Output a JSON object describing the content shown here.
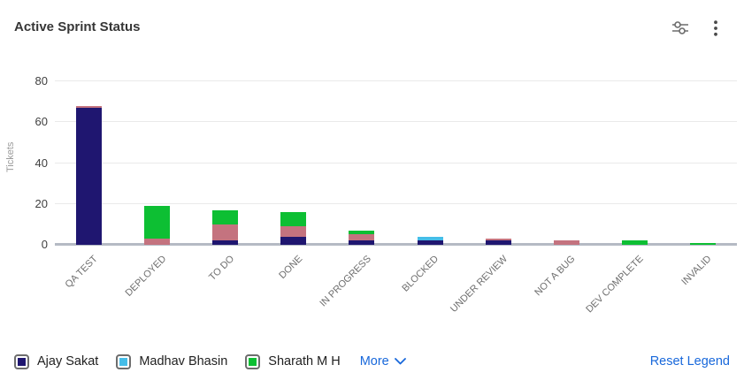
{
  "header": {
    "title": "Active Sprint Status"
  },
  "chart_data": {
    "type": "bar",
    "stacked": true,
    "title": "Active Sprint Status",
    "xlabel": "",
    "ylabel": "Tickets",
    "ylim": [
      0,
      80
    ],
    "yticks": [
      0,
      20,
      40,
      60,
      80
    ],
    "grid": "horizontal",
    "legend_position": "bottom",
    "categories": [
      "QA TEST",
      "DEPLOYED",
      "TO DO",
      "DONE",
      "IN PROGRESS",
      "BLOCKED",
      "UNDER REVIEW",
      "NOT A BUG",
      "DEV COMPLETE",
      "INVALID"
    ],
    "series": [
      {
        "name": "Ajay Sakat",
        "color": "#1f1670",
        "in_visible_legend": true,
        "values": [
          67,
          0,
          2,
          4,
          2,
          2,
          2,
          0,
          0,
          0
        ]
      },
      {
        "name": "(collapsed under More)",
        "color": "#c4737f",
        "in_visible_legend": false,
        "values": [
          1,
          3,
          8,
          5,
          3,
          0,
          1,
          2,
          0,
          0
        ]
      },
      {
        "name": "Madhav Bhasin",
        "color": "#45bde8",
        "in_visible_legend": true,
        "values": [
          0,
          0,
          0,
          0,
          0,
          2,
          0,
          0,
          0,
          0
        ]
      },
      {
        "name": "Sharath M H",
        "color": "#0dbf33",
        "in_visible_legend": true,
        "values": [
          0,
          16,
          7,
          7,
          2,
          0,
          0,
          0,
          2,
          1
        ]
      }
    ],
    "totals": [
      68,
      19,
      17,
      16,
      7,
      4,
      3,
      2,
      2,
      1
    ]
  },
  "legend": {
    "items": [
      {
        "label": "Ajay Sakat",
        "color": "#1f1670"
      },
      {
        "label": "Madhav Bhasin",
        "color": "#45bde8"
      },
      {
        "label": "Sharath M H",
        "color": "#0dbf33"
      }
    ],
    "more_label": "More",
    "reset_label": "Reset Legend",
    "link_color": "#1868db"
  }
}
